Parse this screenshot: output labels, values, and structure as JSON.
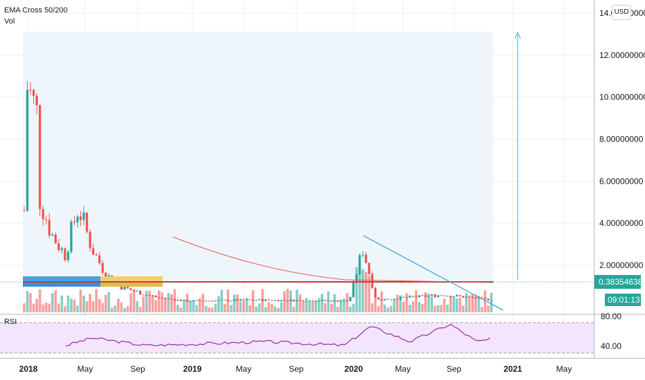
{
  "indicators": {
    "ema_label": "EMA Cross 50/200",
    "vol_label": "Vol",
    "rsi_label": "RSI"
  },
  "currency": "USD",
  "price_axis": {
    "labels": [
      "14.00000000",
      "12.00000000",
      "10.00000000",
      "8.00000000",
      "6.00000000",
      "4.00000000",
      "2.00000000"
    ],
    "current_price": "0.38354638",
    "countdown": "09:01:13"
  },
  "rsi_axis": {
    "labels": [
      "80.00",
      "40.00"
    ]
  },
  "time_axis": {
    "labels": [
      "2018",
      "May",
      "Sep",
      "2019",
      "May",
      "Sep",
      "2020",
      "May",
      "Sep",
      "2021",
      "May"
    ]
  },
  "colors": {
    "up": "#26a69a",
    "down": "#ef5350",
    "rsi_line": "#9c27b0",
    "rsi_band": "#f3e5fc",
    "range_fill": "#eef6fc",
    "trend_line": "#4aa6d6",
    "ema": "#e53935"
  },
  "chart_data": [
    {
      "type": "candlestick",
      "approx_close_series": [
        {
          "x": "2018-01",
          "y": 4.6
        },
        {
          "x": "2018-01",
          "y": 11.0
        },
        {
          "x": "2018-02",
          "y": 9.0
        },
        {
          "x": "2018-02",
          "y": 5.5
        },
        {
          "x": "2018-03",
          "y": 3.5
        },
        {
          "x": "2018-04",
          "y": 2.5
        },
        {
          "x": "2018-05",
          "y": 4.8
        },
        {
          "x": "2018-06",
          "y": 2.8
        },
        {
          "x": "2018-07",
          "y": 1.6
        },
        {
          "x": "2018-08",
          "y": 1.0
        },
        {
          "x": "2018-09",
          "y": 0.8
        },
        {
          "x": "2018-10",
          "y": 0.6
        },
        {
          "x": "2018-11",
          "y": 0.45
        },
        {
          "x": "2019-01",
          "y": 0.3
        },
        {
          "x": "2019-06",
          "y": 0.35
        },
        {
          "x": "2020-01",
          "y": 0.3
        },
        {
          "x": "2020-02",
          "y": 2.8
        },
        {
          "x": "2020-03",
          "y": 0.35
        },
        {
          "x": "2020-08",
          "y": 0.6
        },
        {
          "x": "2020-11",
          "y": 0.38
        }
      ],
      "current_price": 0.38354638,
      "ylim": [
        0,
        14.8
      ]
    },
    {
      "type": "line",
      "ylabel": "RSI",
      "approx_series": [
        {
          "x": "2018-03",
          "y": 50
        },
        {
          "x": "2018-05",
          "y": 60
        },
        {
          "x": "2018-09",
          "y": 50
        },
        {
          "x": "2019-01",
          "y": 52
        },
        {
          "x": "2019-06",
          "y": 55
        },
        {
          "x": "2019-12",
          "y": 50
        },
        {
          "x": "2020-02",
          "y": 75
        },
        {
          "x": "2020-05",
          "y": 55
        },
        {
          "x": "2020-08",
          "y": 78
        },
        {
          "x": "2020-10",
          "y": 55
        },
        {
          "x": "2020-11",
          "y": 58
        }
      ],
      "ylim": [
        20,
        90
      ]
    }
  ]
}
